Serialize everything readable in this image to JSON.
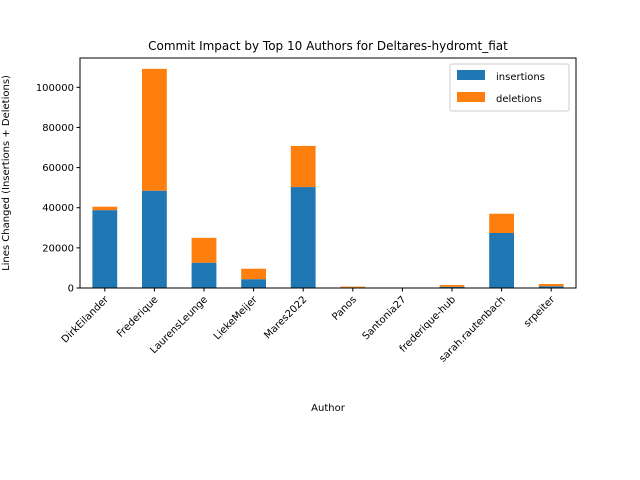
{
  "chart_data": {
    "type": "bar",
    "stacked": true,
    "title": "Commit Impact by Top 10 Authors for Deltares-hydromt_fiat",
    "xlabel": "Author",
    "ylabel": "Lines Changed (Insertions + Deletions)",
    "ylim": [
      0,
      114600
    ],
    "yticks": [
      0,
      20000,
      40000,
      60000,
      80000,
      100000
    ],
    "ytick_labels": [
      "0",
      "20000",
      "40000",
      "60000",
      "80000",
      "100000"
    ],
    "grid": false,
    "legend_position": "top-right",
    "categories": [
      "DirkEilander",
      "Frederique",
      "LaurensLeunge",
      "LiekeMeijer",
      "Mares2022",
      "Panos",
      "Santonia27",
      "frederique-hub",
      "sarah.rautenbach",
      "srpeiter"
    ],
    "series": [
      {
        "name": "insertions",
        "color": "#1f77b4",
        "values": [
          38800,
          48500,
          12600,
          4400,
          50300,
          300,
          50,
          600,
          27400,
          900
        ]
      },
      {
        "name": "deletions",
        "color": "#ff7f0e",
        "values": [
          1700,
          60700,
          12400,
          5200,
          20500,
          400,
          20,
          900,
          9600,
          1100
        ]
      }
    ]
  }
}
